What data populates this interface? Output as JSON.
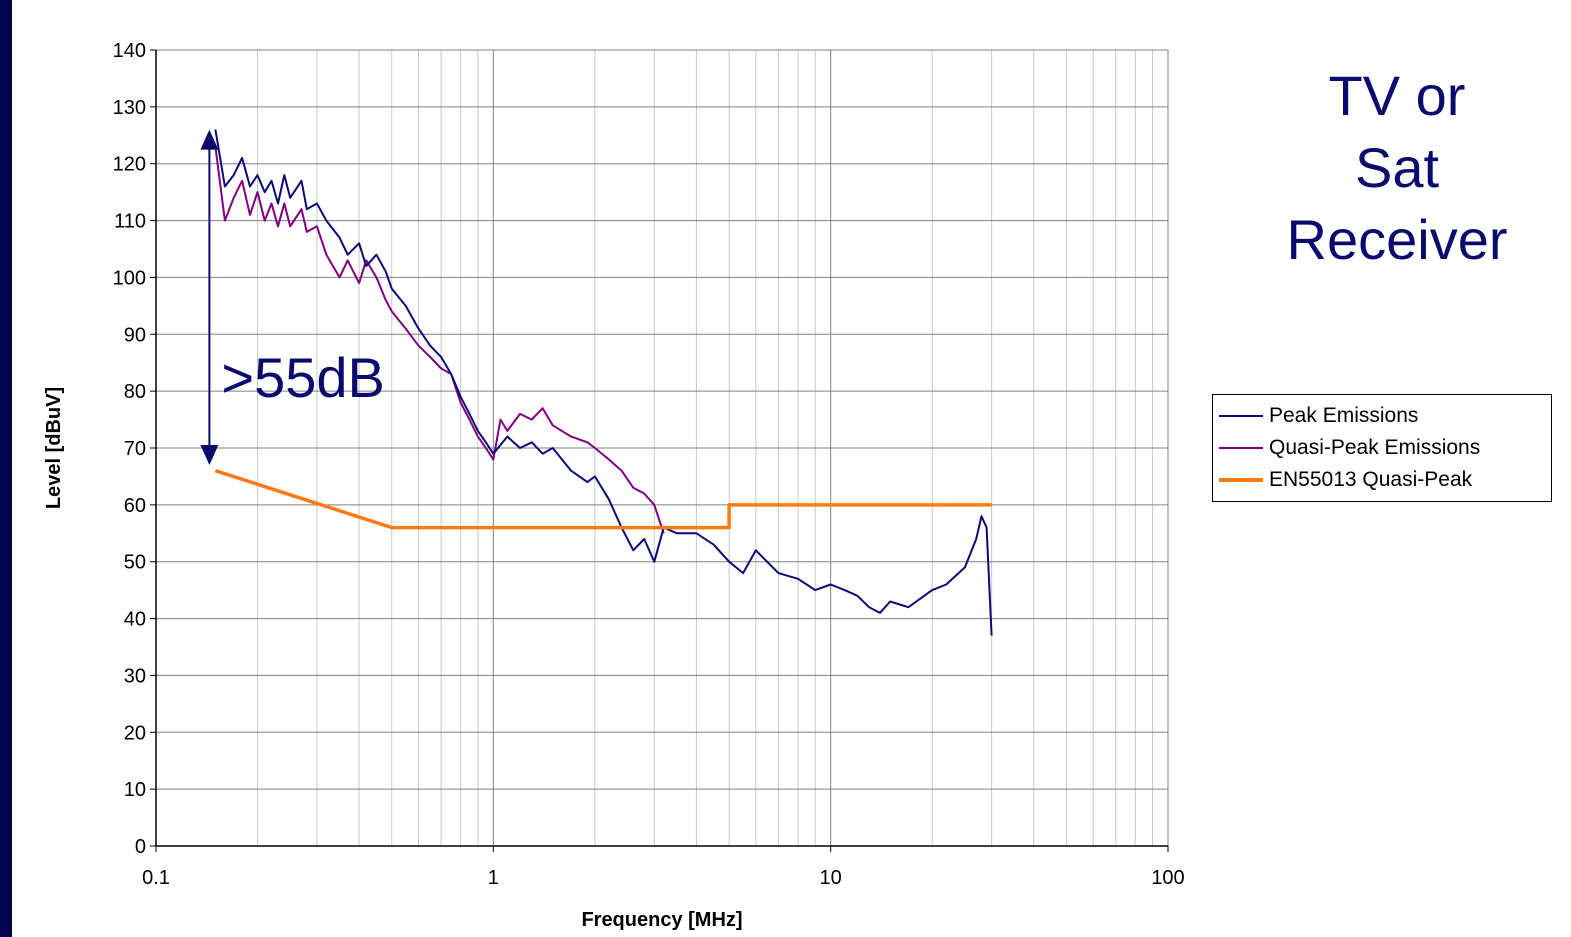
{
  "side_title": {
    "lines": [
      "TV or",
      "Sat",
      "Receiver"
    ]
  },
  "colors": {
    "peak": "#0a0a78",
    "quasi_peak": "#800080",
    "limit": "#ff7a14",
    "annotation": "#0b0b6e"
  },
  "chart_data": {
    "type": "line",
    "xlabel": "Frequency [MHz]",
    "ylabel": "Level [dBuV]",
    "xscale": "log",
    "xlim": [
      0.1,
      100
    ],
    "ylim": [
      0,
      140
    ],
    "xticks": [
      0.1,
      1,
      10,
      100
    ],
    "xtick_labels": [
      "0.1",
      "1",
      "10",
      "100"
    ],
    "yticks": [
      0,
      10,
      20,
      30,
      40,
      50,
      60,
      70,
      80,
      90,
      100,
      110,
      120,
      130,
      140
    ],
    "grid": true,
    "legend_position": "right",
    "annotation": {
      "text": ">55dB",
      "x": 0.15,
      "y_top": 126,
      "y_bottom": 67
    },
    "series": [
      {
        "name": "Peak Emissions",
        "x": [
          0.15,
          0.16,
          0.17,
          0.18,
          0.19,
          0.2,
          0.21,
          0.22,
          0.23,
          0.24,
          0.25,
          0.27,
          0.28,
          0.3,
          0.32,
          0.35,
          0.37,
          0.4,
          0.42,
          0.45,
          0.48,
          0.5,
          0.55,
          0.6,
          0.65,
          0.7,
          0.75,
          0.8,
          0.85,
          0.9,
          0.95,
          1.0,
          1.1,
          1.2,
          1.3,
          1.4,
          1.5,
          1.7,
          1.9,
          2.0,
          2.2,
          2.4,
          2.6,
          2.8,
          3.0,
          3.2,
          3.5,
          4.0,
          4.5,
          5.0,
          5.5,
          6.0,
          7.0,
          8.0,
          9.0,
          10.0,
          11.0,
          12.0,
          13.0,
          14.0,
          15.0,
          17.0,
          20.0,
          22.0,
          25.0,
          27.0,
          28.0,
          29.0,
          30.0
        ],
        "y": [
          126,
          116,
          118,
          121,
          116,
          118,
          115,
          117,
          113,
          118,
          114,
          117,
          112,
          113,
          110,
          107,
          104,
          106,
          102,
          104,
          101,
          98,
          95,
          91,
          88,
          86,
          83,
          79,
          76,
          73,
          71,
          69,
          72,
          70,
          71,
          69,
          70,
          66,
          64,
          65,
          61,
          56,
          52,
          54,
          50,
          56,
          55,
          55,
          53,
          50,
          48,
          52,
          48,
          47,
          45,
          46,
          45,
          44,
          42,
          41,
          43,
          42,
          45,
          46,
          49,
          54,
          58,
          56,
          37
        ]
      },
      {
        "name": "Quasi-Peak Emissions",
        "x": [
          0.15,
          0.16,
          0.17,
          0.18,
          0.19,
          0.2,
          0.21,
          0.22,
          0.23,
          0.24,
          0.25,
          0.27,
          0.28,
          0.3,
          0.32,
          0.35,
          0.37,
          0.4,
          0.42,
          0.45,
          0.48,
          0.5,
          0.55,
          0.6,
          0.65,
          0.7,
          0.75,
          0.8,
          0.85,
          0.9,
          0.95,
          1.0,
          1.05,
          1.1,
          1.2,
          1.3,
          1.4,
          1.5,
          1.7,
          1.9,
          2.0,
          2.2,
          2.4,
          2.6,
          2.8,
          3.0,
          3.2
        ],
        "y": [
          123,
          110,
          114,
          117,
          111,
          115,
          110,
          113,
          109,
          113,
          109,
          112,
          108,
          109,
          104,
          100,
          103,
          99,
          103,
          100,
          96,
          94,
          91,
          88,
          86,
          84,
          83,
          78,
          75,
          72,
          70,
          68,
          75,
          73,
          76,
          75,
          77,
          74,
          72,
          71,
          70,
          68,
          66,
          63,
          62,
          60,
          55
        ]
      },
      {
        "name": "EN55013 Quasi-Peak",
        "x": [
          0.15,
          0.5,
          5.0,
          5.0,
          30.0
        ],
        "y": [
          66,
          56,
          56,
          60,
          60
        ]
      }
    ]
  }
}
